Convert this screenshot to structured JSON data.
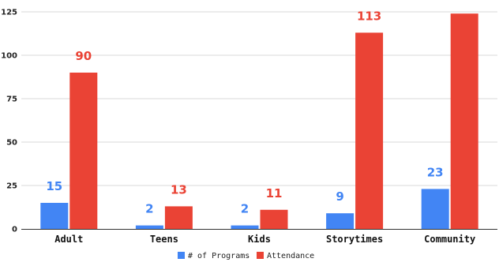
{
  "chart_data": {
    "type": "bar",
    "categories": [
      "Adult",
      "Teens",
      "Kids",
      "Storytimes",
      "Community"
    ],
    "series": [
      {
        "name": "# of Programs",
        "color": "#4285f4",
        "values": [
          15,
          2,
          2,
          9,
          23
        ],
        "labels": [
          "15",
          "2",
          "2",
          "9",
          "23"
        ]
      },
      {
        "name": "Attendance",
        "color": "#ea4335",
        "values": [
          90,
          13,
          11,
          113,
          124
        ],
        "labels": [
          "90",
          "13",
          "11",
          "113",
          ""
        ]
      }
    ],
    "ylim": [
      0,
      125
    ],
    "yticks": [
      0,
      25,
      50,
      75,
      100,
      125
    ],
    "grid": true,
    "legend": "bottom"
  }
}
